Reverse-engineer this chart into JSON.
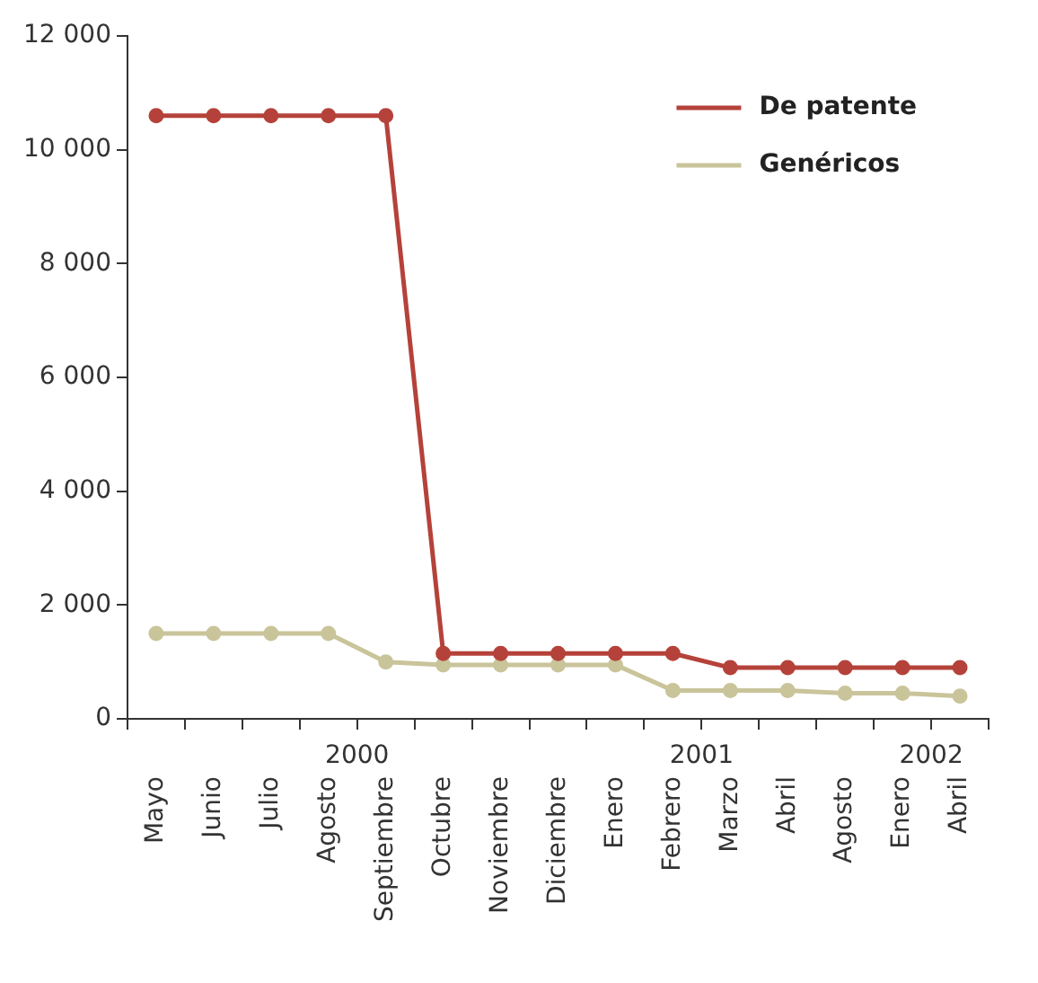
{
  "chart_data": {
    "type": "line",
    "categories": [
      "Mayo",
      "Junio",
      "Julio",
      "Agosto",
      "Septiembre",
      "Octubre",
      "Noviembre",
      "Diciembre",
      "Enero",
      "Febrero",
      "Marzo",
      "Abril",
      "Agosto",
      "Enero",
      "Abril"
    ],
    "series": [
      {
        "name": "De patente",
        "color": "#b5423a",
        "values": [
          10600,
          10600,
          10600,
          10600,
          10600,
          1150,
          1150,
          1150,
          1150,
          1150,
          900,
          900,
          900,
          900,
          900
        ]
      },
      {
        "name": "Genéricos",
        "color": "#c9c49a",
        "values": [
          1500,
          1500,
          1500,
          1500,
          1000,
          950,
          950,
          950,
          950,
          500,
          500,
          500,
          450,
          450,
          400
        ]
      }
    ],
    "ylim": [
      0,
      12000
    ],
    "yticks": [
      {
        "value": 0,
        "label": "0"
      },
      {
        "value": 2000,
        "label": "2 000"
      },
      {
        "value": 4000,
        "label": "4 000"
      },
      {
        "value": 6000,
        "label": "6 000"
      },
      {
        "value": 8000,
        "label": "8 000"
      },
      {
        "value": 10000,
        "label": "10 000"
      },
      {
        "value": 12000,
        "label": "12 000"
      }
    ],
    "annotations": [
      "2000",
      "2001",
      "2002"
    ],
    "grid": false,
    "legend": "top right",
    "marker": "circle",
    "line_style": "solid"
  }
}
